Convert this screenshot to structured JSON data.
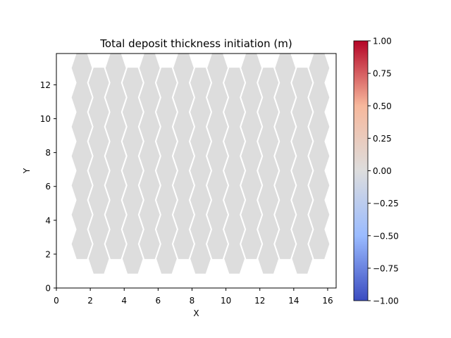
{
  "chart_data": {
    "type": "heatmap",
    "subtype": "hex-grid",
    "title": "Total deposit thickness initiation (m)",
    "xlabel": "X",
    "ylabel": "Y",
    "xlim": [
      0,
      16.5
    ],
    "ylim": [
      0,
      13.85
    ],
    "xticks": [
      "0",
      "2",
      "4",
      "6",
      "8",
      "10",
      "12",
      "14",
      "16"
    ],
    "yticks": [
      "0",
      "2",
      "4",
      "6",
      "8",
      "10",
      "12"
    ],
    "grid": false,
    "hex_grid": {
      "columns": 15,
      "rows": 8,
      "x_centers": [
        1.5,
        2.5,
        3.5,
        4.5,
        5.5,
        6.5,
        7.5,
        8.5,
        9.5,
        10.5,
        11.5,
        12.5,
        13.5,
        14.5,
        15.5
      ],
      "row_y_centers": [
        0.866,
        2.598,
        4.33,
        6.062,
        7.794,
        9.526,
        11.258,
        12.99
      ],
      "cell_value": 0.0,
      "cell_color": "#dddddd"
    },
    "colorbar": {
      "colormap": "coolwarm",
      "min": -1.0,
      "max": 1.0,
      "ticks": [
        "1.00",
        "0.75",
        "0.50",
        "0.25",
        "0.00",
        "−0.25",
        "−0.50",
        "−0.75",
        "−1.00"
      ],
      "stops": [
        "#b40426",
        "#f7b89c",
        "#dddddd",
        "#9abbff",
        "#3b4cc0"
      ]
    }
  }
}
